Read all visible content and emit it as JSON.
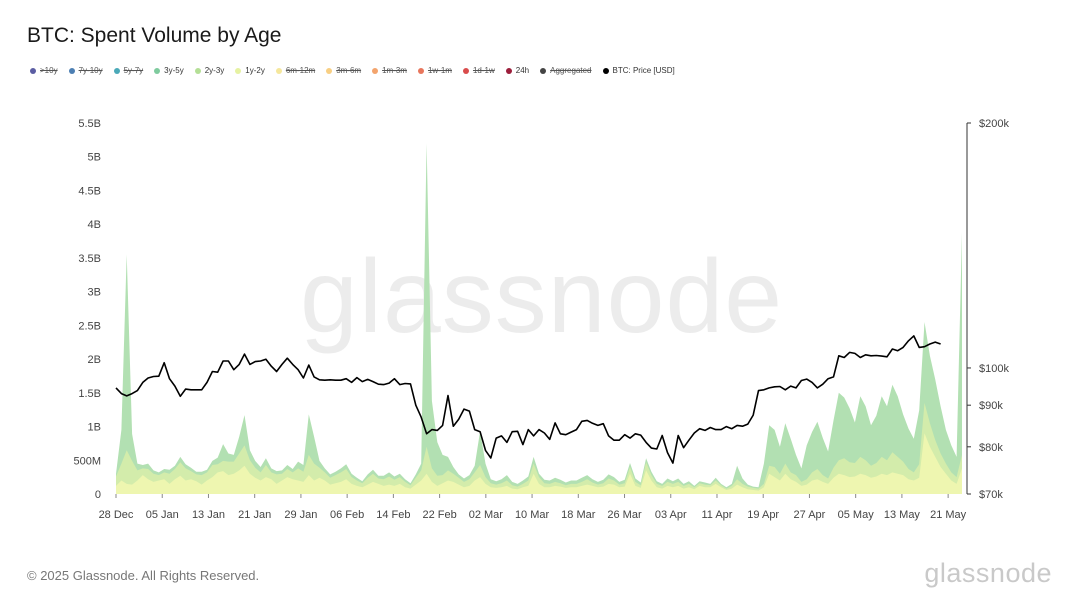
{
  "title": "BTC: Spent Volume by Age",
  "legend": [
    {
      "label": ">10y",
      "color": "#5b5da3",
      "active": false
    },
    {
      "label": "7y-10y",
      "color": "#4c7fb3",
      "active": false
    },
    {
      "label": "5y-7y",
      "color": "#4aa9b8",
      "active": false
    },
    {
      "label": "3y-5y",
      "color": "#7fcb9e",
      "active": true
    },
    {
      "label": "2y-3y",
      "color": "#b4df96",
      "active": true
    },
    {
      "label": "1y-2y",
      "color": "#e6f2a2",
      "active": true
    },
    {
      "label": "6m-12m",
      "color": "#f5e79c",
      "active": false
    },
    {
      "label": "3m-6m",
      "color": "#f8cf83",
      "active": false
    },
    {
      "label": "1m-3m",
      "color": "#f3a46d",
      "active": false
    },
    {
      "label": "1w-1m",
      "color": "#e8765c",
      "active": false
    },
    {
      "label": "1d-1w",
      "color": "#d94c4c",
      "active": false
    },
    {
      "label": "24h",
      "color": "#9c1e3b",
      "active": true
    },
    {
      "label": "Aggregated",
      "color": "#444444",
      "active": false
    },
    {
      "label": "BTC: Price [USD]",
      "color": "#000000",
      "active": true
    }
  ],
  "watermark": "glassnode",
  "footer": {
    "copyright": "© 2025 Glassnode. All Rights Reserved.",
    "logo": "glassnode"
  },
  "chart_data": {
    "type": "area",
    "xlabel": "",
    "ylabel": "",
    "x_tick_labels": [
      "28 Dec",
      "05 Jan",
      "13 Jan",
      "21 Jan",
      "29 Jan",
      "06 Feb",
      "14 Feb",
      "22 Feb",
      "02 Mar",
      "10 Mar",
      "18 Mar",
      "26 Mar",
      "03 Apr",
      "11 Apr",
      "19 Apr",
      "27 Apr",
      "05 May",
      "13 May",
      "21 May"
    ],
    "y_left": {
      "ylim": [
        0,
        5500000000
      ],
      "ticks": [
        0,
        500000000,
        1000000000,
        1500000000,
        2000000000,
        2500000000,
        3000000000,
        3500000000,
        4000000000,
        4500000000,
        5000000000,
        5500000000
      ],
      "tick_labels": [
        "0",
        "500M",
        "1B",
        "1.5B",
        "2B",
        "2.5B",
        "3B",
        "3.5B",
        "4B",
        "4.5B",
        "5B",
        "5.5B"
      ]
    },
    "y_right": {
      "scale": "log",
      "ylim": [
        70000,
        200000
      ],
      "ticks": [
        70000,
        80000,
        90000,
        100000,
        200000
      ],
      "tick_labels": [
        "$70k",
        "$80k",
        "$90k",
        "$100k",
        "$200k"
      ]
    },
    "colors": {
      "1y-2y": "#eef6b0",
      "2y-3y": "#d3ecab",
      "3y-5y": "#b2e0b2",
      "price": "#000000"
    },
    "series": [
      {
        "name": "1y-2y",
        "values": [
          0.12,
          0.2,
          0.15,
          0.14,
          0.2,
          0.28,
          0.22,
          0.18,
          0.2,
          0.22,
          0.15,
          0.22,
          0.27,
          0.2,
          0.22,
          0.19,
          0.14,
          0.2,
          0.25,
          0.32,
          0.34,
          0.28,
          0.3,
          0.35,
          0.42,
          0.3,
          0.24,
          0.2,
          0.25,
          0.22,
          0.15,
          0.2,
          0.25,
          0.22,
          0.2,
          0.18,
          0.28,
          0.2,
          0.24,
          0.2,
          0.14,
          0.16,
          0.18,
          0.22,
          0.15,
          0.12,
          0.1,
          0.14,
          0.18,
          0.15,
          0.12,
          0.14,
          0.12,
          0.15,
          0.1,
          0.08,
          0.14,
          0.2,
          0.3,
          0.18,
          0.12,
          0.16,
          0.2,
          0.18,
          0.14,
          0.1,
          0.12,
          0.2,
          0.25,
          0.15,
          0.1,
          0.09,
          0.1,
          0.12,
          0.08,
          0.07,
          0.1,
          0.12,
          0.3,
          0.15,
          0.1,
          0.1,
          0.12,
          0.11,
          0.09,
          0.1,
          0.1,
          0.12,
          0.14,
          0.12,
          0.1,
          0.11,
          0.15,
          0.14,
          0.1,
          0.11,
          0.3,
          0.12,
          0.09,
          0.35,
          0.2,
          0.1,
          0.08,
          0.12,
          0.1,
          0.12,
          0.08,
          0.1,
          0.07,
          0.12,
          0.1,
          0.1,
          0.15,
          0.1,
          0.06,
          0.08,
          0.14,
          0.1,
          0.07,
          0.06,
          0.05,
          0.1,
          0.3,
          0.25,
          0.2,
          0.3,
          0.22,
          0.18,
          0.12,
          0.14,
          0.2,
          0.22,
          0.18,
          0.15,
          0.24,
          0.3,
          0.28,
          0.25,
          0.26,
          0.3,
          0.28,
          0.24,
          0.26,
          0.3,
          0.28,
          0.32,
          0.3,
          0.28,
          0.22,
          0.2,
          0.24,
          0.9,
          0.7,
          0.55,
          0.4,
          0.3,
          0.2,
          0.15,
          0.38
        ]
      },
      {
        "name": "2y-3y",
        "values": [
          0.14,
          0.25,
          0.5,
          0.35,
          0.15,
          0.1,
          0.15,
          0.12,
          0.08,
          0.1,
          0.15,
          0.15,
          0.2,
          0.18,
          0.12,
          0.1,
          0.14,
          0.12,
          0.18,
          0.12,
          0.15,
          0.2,
          0.18,
          0.25,
          0.3,
          0.2,
          0.15,
          0.12,
          0.18,
          0.1,
          0.14,
          0.1,
          0.12,
          0.1,
          0.18,
          0.15,
          0.3,
          0.25,
          0.15,
          0.12,
          0.1,
          0.12,
          0.14,
          0.15,
          0.1,
          0.08,
          0.06,
          0.1,
          0.12,
          0.08,
          0.1,
          0.12,
          0.09,
          0.1,
          0.08,
          0.05,
          0.1,
          0.15,
          0.4,
          0.2,
          0.15,
          0.12,
          0.15,
          0.12,
          0.1,
          0.08,
          0.1,
          0.12,
          0.18,
          0.1,
          0.06,
          0.05,
          0.06,
          0.08,
          0.05,
          0.04,
          0.05,
          0.08,
          0.15,
          0.1,
          0.06,
          0.05,
          0.06,
          0.05,
          0.04,
          0.05,
          0.05,
          0.06,
          0.08,
          0.05,
          0.04,
          0.05,
          0.08,
          0.06,
          0.04,
          0.05,
          0.1,
          0.06,
          0.04,
          0.12,
          0.08,
          0.05,
          0.04,
          0.06,
          0.05,
          0.06,
          0.04,
          0.05,
          0.03,
          0.04,
          0.04,
          0.03,
          0.05,
          0.03,
          0.02,
          0.04,
          0.08,
          0.05,
          0.04,
          0.03,
          0.03,
          0.05,
          0.12,
          0.15,
          0.1,
          0.15,
          0.1,
          0.1,
          0.06,
          0.08,
          0.12,
          0.15,
          0.1,
          0.08,
          0.15,
          0.2,
          0.25,
          0.22,
          0.2,
          0.25,
          0.22,
          0.18,
          0.2,
          0.25,
          0.22,
          0.3,
          0.25,
          0.2,
          0.15,
          0.12,
          0.2,
          0.45,
          0.35,
          0.25,
          0.2,
          0.15,
          0.12,
          0.1,
          0.2
        ]
      },
      {
        "name": "3y-5y",
        "values": [
          0.04,
          0.5,
          2.9,
          0.4,
          0.1,
          0.05,
          0.08,
          0.05,
          0.04,
          0.05,
          0.06,
          0.05,
          0.08,
          0.06,
          0.05,
          0.04,
          0.05,
          0.04,
          0.06,
          0.1,
          0.25,
          0.12,
          0.1,
          0.25,
          0.45,
          0.15,
          0.1,
          0.08,
          0.1,
          0.06,
          0.05,
          0.05,
          0.06,
          0.05,
          0.1,
          0.1,
          0.6,
          0.4,
          0.1,
          0.06,
          0.05,
          0.05,
          0.06,
          0.07,
          0.05,
          0.04,
          0.03,
          0.05,
          0.06,
          0.04,
          0.05,
          0.06,
          0.05,
          0.05,
          0.04,
          0.03,
          0.05,
          0.1,
          4.5,
          1.0,
          0.5,
          0.3,
          0.2,
          0.1,
          0.05,
          0.05,
          0.06,
          0.1,
          0.5,
          0.2,
          0.06,
          0.05,
          0.06,
          0.08,
          0.05,
          0.04,
          0.05,
          0.06,
          0.1,
          0.05,
          0.05,
          0.05,
          0.06,
          0.05,
          0.04,
          0.05,
          0.05,
          0.06,
          0.06,
          0.05,
          0.04,
          0.05,
          0.06,
          0.05,
          0.04,
          0.05,
          0.06,
          0.05,
          0.04,
          0.06,
          0.05,
          0.04,
          0.03,
          0.05,
          0.04,
          0.05,
          0.03,
          0.04,
          0.02,
          0.03,
          0.03,
          0.02,
          0.04,
          0.02,
          0.02,
          0.03,
          0.2,
          0.08,
          0.03,
          0.02,
          0.02,
          0.3,
          0.6,
          0.55,
          0.4,
          0.6,
          0.5,
          0.3,
          0.2,
          0.5,
          0.6,
          0.7,
          0.55,
          0.4,
          0.7,
          1.0,
          0.9,
          0.8,
          0.6,
          0.9,
          0.8,
          0.6,
          0.7,
          0.9,
          0.8,
          1.0,
          0.9,
          0.7,
          0.6,
          0.5,
          0.8,
          1.2,
          1.0,
          0.9,
          0.7,
          0.5,
          0.4,
          0.3,
          3.3
        ]
      },
      {
        "name": "BTC: Price [USD]",
        "values": [
          94500,
          93000,
          92400,
          93000,
          93800,
          96000,
          97200,
          97600,
          97700,
          101500,
          97000,
          95000,
          92300,
          94200,
          94000,
          94000,
          94000,
          96000,
          99000,
          98800,
          102000,
          102000,
          99500,
          101000,
          104000,
          101000,
          101800,
          102000,
          102500,
          100500,
          99000,
          101000,
          102800,
          101000,
          99500,
          97200,
          100800,
          97500,
          96700,
          96600,
          96700,
          96600,
          96600,
          97000,
          96000,
          97300,
          96200,
          96800,
          96200,
          95500,
          95400,
          95800,
          97000,
          95400,
          95700,
          95600,
          90000,
          87000,
          83000,
          84000,
          83800,
          85000,
          92500,
          84800,
          86500,
          89000,
          88500,
          84000,
          83500,
          79200,
          77500,
          82000,
          82500,
          81000,
          83500,
          83600,
          80500,
          84000,
          82500,
          84000,
          83200,
          81700,
          85600,
          83000,
          82800,
          83400,
          84000,
          86000,
          86200,
          85500,
          85000,
          85400,
          82500,
          81500,
          81500,
          82800,
          82000,
          83000,
          82700,
          81000,
          79700,
          79500,
          82600,
          78700,
          76400,
          82600,
          79800,
          81500,
          83200,
          84200,
          83800,
          84500,
          84000,
          84000,
          84700,
          84200,
          85000,
          84800,
          85300,
          87500,
          93800,
          94000,
          94500,
          94800,
          94900,
          94000,
          95000,
          94500,
          96500,
          96900,
          96000,
          94500,
          95500,
          97000,
          97500,
          103500,
          103000,
          104500,
          104200,
          103000,
          103800,
          103500,
          103600,
          103400,
          103200,
          105500,
          105000,
          106000,
          108000,
          109500,
          106000,
          106200,
          107000,
          107600,
          107000
        ]
      }
    ],
    "annotations": []
  }
}
